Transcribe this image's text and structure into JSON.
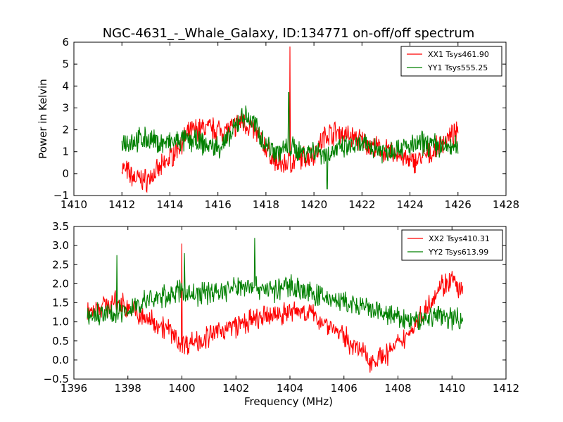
{
  "figure": {
    "title": "NGC-4631_-_Whale_Galaxy, ID:134771 on-off/off spectrum"
  },
  "chart_data": [
    {
      "type": "line",
      "title": "NGC-4631_-_Whale_Galaxy, ID:134771 on-off/off spectrum",
      "xlabel": "",
      "ylabel": "Power in Kelvin",
      "xlim": [
        1410,
        1428
      ],
      "ylim": [
        -1,
        6
      ],
      "xticks": [
        "1410",
        "1412",
        "1414",
        "1416",
        "1418",
        "1420",
        "1422",
        "1424",
        "1426",
        "1428"
      ],
      "yticks": [
        "−1",
        "0",
        "1",
        "2",
        "3",
        "4",
        "5",
        "6"
      ],
      "legend_position": "top-right",
      "grid": false,
      "series": [
        {
          "name": "XX1 Tsys461.90",
          "color": "#ff0000",
          "x": [
            1412.0,
            1412.5,
            1413.0,
            1413.5,
            1414.0,
            1414.5,
            1415.0,
            1415.5,
            1416.0,
            1416.5,
            1417.0,
            1417.5,
            1418.0,
            1418.5,
            1419.0,
            1419.5,
            1420.0,
            1420.5,
            1421.0,
            1421.5,
            1422.0,
            1422.5,
            1423.0,
            1423.5,
            1424.0,
            1424.5,
            1425.0,
            1425.5,
            1426.0
          ],
          "y": [
            0.3,
            -0.2,
            -0.3,
            0.1,
            0.7,
            1.5,
            2.0,
            2.1,
            2.0,
            2.0,
            2.4,
            2.0,
            1.2,
            0.4,
            0.5,
            0.7,
            0.9,
            1.8,
            1.9,
            1.7,
            1.5,
            1.2,
            1.0,
            0.9,
            0.5,
            0.7,
            1.0,
            1.6,
            1.8
          ],
          "spikes": [
            {
              "x": 1419.0,
              "y": 5.8
            }
          ]
        },
        {
          "name": "YY1 Tsys555.25",
          "color": "#008000",
          "x": [
            1412.0,
            1412.5,
            1413.0,
            1413.5,
            1414.0,
            1414.5,
            1415.0,
            1415.5,
            1416.0,
            1416.5,
            1417.0,
            1417.5,
            1418.0,
            1418.5,
            1419.0,
            1419.5,
            1420.0,
            1420.5,
            1421.0,
            1421.5,
            1422.0,
            1422.5,
            1423.0,
            1423.5,
            1424.0,
            1424.5,
            1425.0,
            1425.5,
            1426.0
          ],
          "y": [
            1.5,
            1.5,
            1.6,
            1.4,
            1.4,
            1.5,
            1.5,
            1.3,
            1.2,
            1.6,
            2.7,
            2.3,
            1.3,
            1.0,
            1.2,
            1.0,
            1.1,
            0.9,
            1.1,
            1.2,
            1.3,
            1.2,
            1.0,
            1.2,
            1.2,
            1.4,
            1.3,
            1.2,
            1.2
          ],
          "spikes": [
            {
              "x": 1418.95,
              "y": 3.7
            },
            {
              "x": 1420.55,
              "y": -0.7
            }
          ]
        }
      ]
    },
    {
      "type": "line",
      "title": "",
      "xlabel": "Frequency (MHz)",
      "ylabel": "",
      "xlim": [
        1396,
        1412
      ],
      "ylim": [
        -0.5,
        3.5
      ],
      "xticks": [
        "1396",
        "1398",
        "1400",
        "1402",
        "1404",
        "1406",
        "1408",
        "1410",
        "1412"
      ],
      "yticks": [
        "−0.5",
        "0.0",
        "0.5",
        "1.0",
        "1.5",
        "2.0",
        "2.5",
        "3.0",
        "3.5"
      ],
      "legend_position": "top-right",
      "grid": false,
      "series": [
        {
          "name": "XX2 Tsys410.31",
          "color": "#ff0000",
          "x": [
            1396.5,
            1397.0,
            1397.5,
            1398.0,
            1398.5,
            1399.0,
            1399.5,
            1400.0,
            1400.5,
            1401.0,
            1401.5,
            1402.0,
            1402.5,
            1403.0,
            1403.5,
            1404.0,
            1404.5,
            1405.0,
            1405.5,
            1406.0,
            1406.5,
            1407.0,
            1407.5,
            1408.0,
            1408.5,
            1409.0,
            1409.5,
            1410.0,
            1410.4
          ],
          "y": [
            1.3,
            1.4,
            1.5,
            1.4,
            1.1,
            1.0,
            0.8,
            0.4,
            0.5,
            0.6,
            0.8,
            0.9,
            1.0,
            1.1,
            1.2,
            1.25,
            1.3,
            1.1,
            0.9,
            0.6,
            0.3,
            0.0,
            0.1,
            0.4,
            0.8,
            1.3,
            1.9,
            2.1,
            1.7
          ],
          "spikes": [
            {
              "x": 1400.0,
              "y": 3.05
            }
          ]
        },
        {
          "name": "YY2 Tsys613.99",
          "color": "#008000",
          "x": [
            1396.5,
            1397.0,
            1397.5,
            1398.0,
            1398.5,
            1399.0,
            1399.5,
            1400.0,
            1400.5,
            1401.0,
            1401.5,
            1402.0,
            1402.5,
            1403.0,
            1403.5,
            1404.0,
            1404.5,
            1405.0,
            1405.5,
            1406.0,
            1406.5,
            1407.0,
            1407.5,
            1408.0,
            1408.5,
            1409.0,
            1409.5,
            1410.0,
            1410.4
          ],
          "y": [
            1.1,
            1.2,
            1.2,
            1.3,
            1.5,
            1.6,
            1.7,
            1.8,
            1.7,
            1.8,
            1.8,
            1.9,
            2.0,
            1.9,
            1.8,
            2.0,
            1.8,
            1.7,
            1.6,
            1.5,
            1.4,
            1.3,
            1.2,
            1.1,
            1.0,
            1.1,
            1.2,
            1.1,
            1.1
          ],
          "spikes": [
            {
              "x": 1397.6,
              "y": 2.75
            },
            {
              "x": 1400.1,
              "y": 2.8
            },
            {
              "x": 1402.7,
              "y": 3.2
            }
          ]
        }
      ]
    }
  ]
}
